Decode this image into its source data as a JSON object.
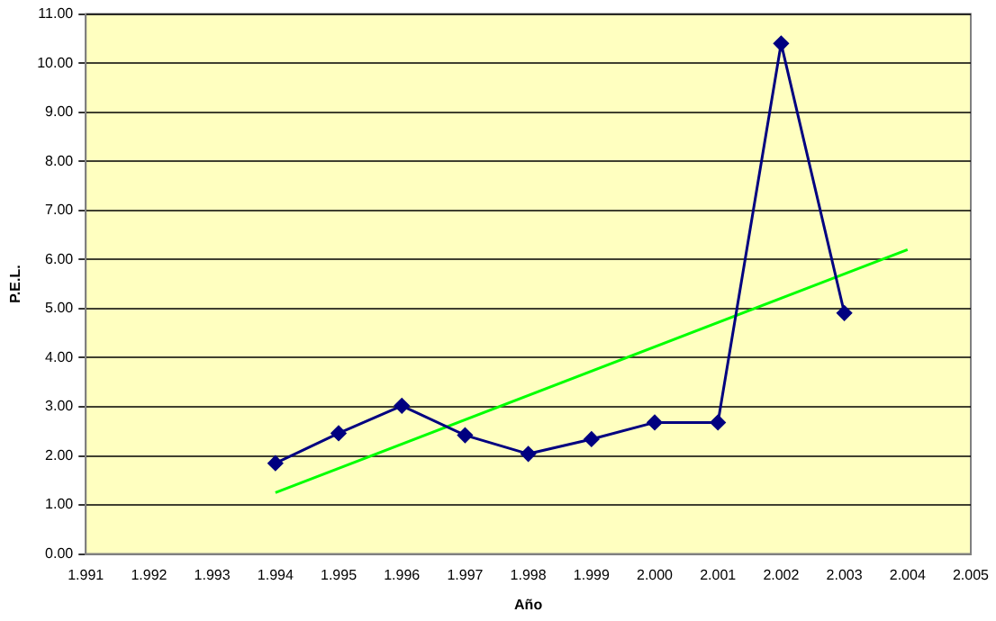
{
  "chart_data": {
    "type": "line",
    "xlabel": "Año",
    "ylabel": "P.E.L.",
    "marker": "diamond",
    "grid": "y",
    "legend": false,
    "x": [
      1.994,
      1.995,
      1.996,
      1.997,
      1.998,
      1.999,
      2.0,
      2.001,
      2.002,
      2.003
    ],
    "series": [
      {
        "color": "#000080",
        "values": [
          1.85,
          2.46,
          3.02,
          2.42,
          2.04,
          2.34,
          2.68,
          2.68,
          10.4,
          4.91
        ]
      },
      {
        "type": "line",
        "marker": "none",
        "color": "#00ff00",
        "x": [
          1.994,
          2.004
        ],
        "values": [
          1.25,
          6.2
        ]
      }
    ],
    "xlim": [
      1.991,
      2.005
    ],
    "xticks": [
      1.991,
      1.992,
      1.993,
      1.994,
      1.995,
      1.996,
      1.997,
      1.998,
      1.999,
      {
        "value": 2.0,
        "label": "2.000"
      },
      2.001,
      2.002,
      2.003,
      2.004,
      2.005
    ],
    "ylim": [
      0,
      11
    ],
    "yticks": [
      {
        "value": 0,
        "label": "0.00"
      },
      {
        "value": 1,
        "label": "1.00"
      },
      {
        "value": 2,
        "label": "2.00"
      },
      {
        "value": 3,
        "label": "3.00"
      },
      {
        "value": 4,
        "label": "4.00"
      },
      {
        "value": 5,
        "label": "5.00"
      },
      {
        "value": 6,
        "label": "6.00"
      },
      {
        "value": 7,
        "label": "7.00"
      },
      {
        "value": 8,
        "label": "8.00"
      },
      {
        "value": 9,
        "label": "9.00"
      },
      {
        "value": 10,
        "label": "10.00"
      },
      {
        "value": 11,
        "label": "11.00"
      }
    ]
  }
}
